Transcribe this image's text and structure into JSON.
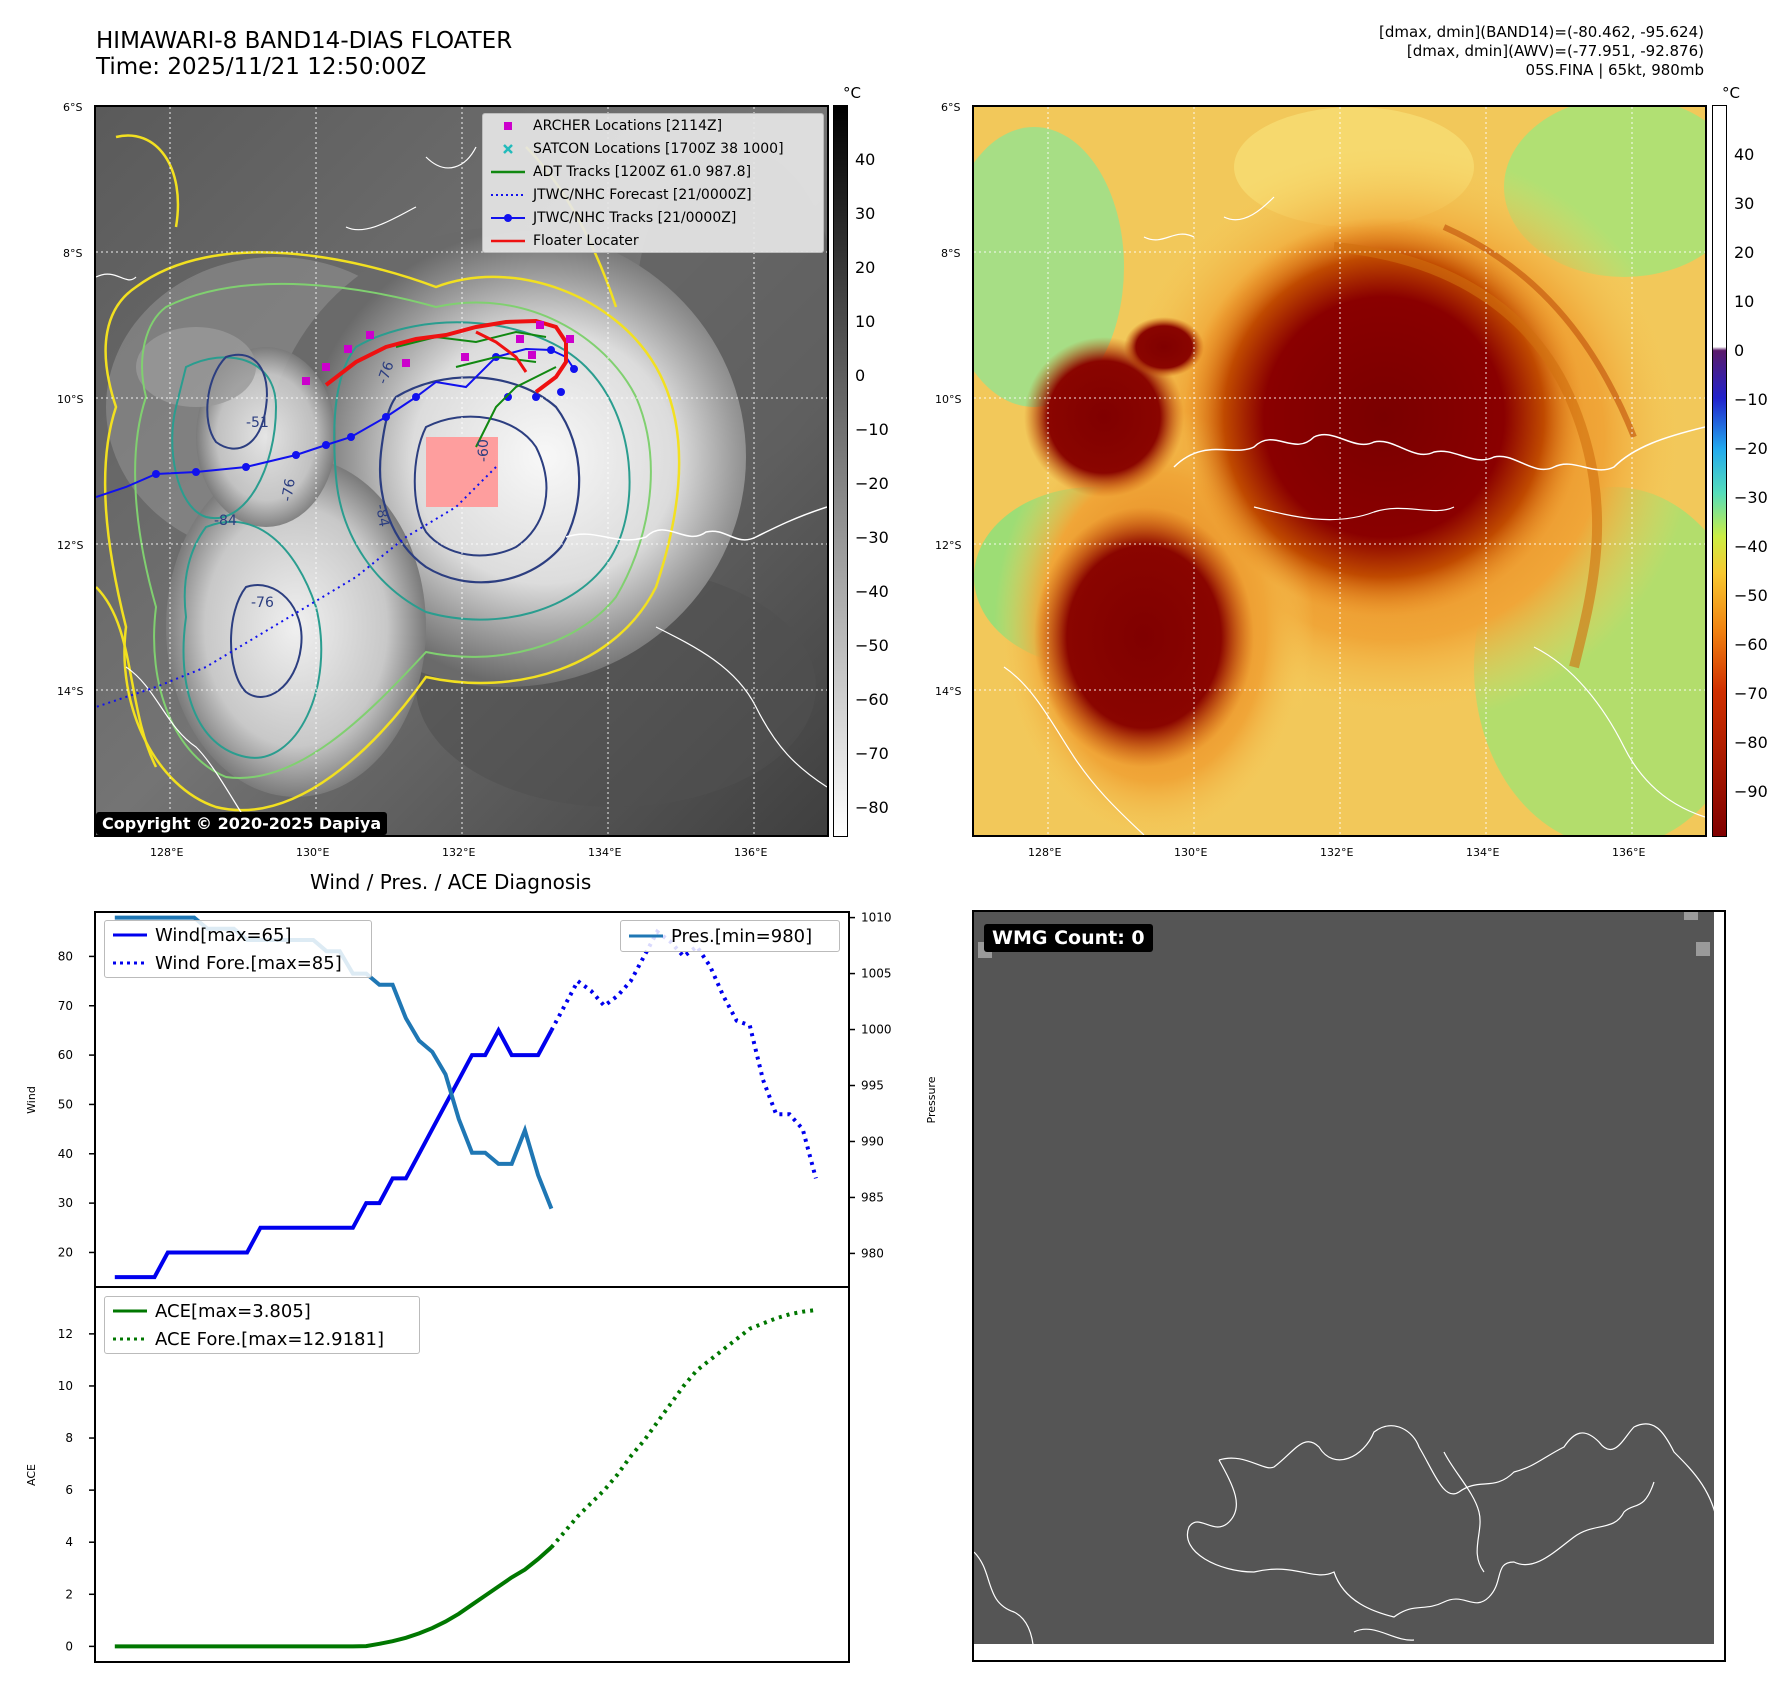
{
  "header": {
    "title_line1": "HIMAWARI-8 BAND14-DIAS FLOATER",
    "title_line2": "Time: 2025/11/21 12:50:00Z",
    "info_line1": "[dmax, dmin](BAND14)=(-80.462, -95.624)",
    "info_line2": "[dmax, dmin](AWV)=(-77.951, -92.876)",
    "info_line3": "05S.FINA | 65kt, 980mb"
  },
  "map": {
    "lat_labels": [
      "6°S",
      "8°S",
      "10°S",
      "12°S",
      "14°S"
    ],
    "lon_labels": [
      "128°E",
      "130°E",
      "132°E",
      "134°E",
      "136°E"
    ],
    "copyright": "Copyright © 2020-2025 Dapiya",
    "legend": [
      {
        "label": "ARCHER Locations [2114Z]",
        "symbol": "square",
        "color": "#cc00cc"
      },
      {
        "label": "SATCON Locations [1700Z 38 1000]",
        "symbol": "x",
        "color": "#22bbbb"
      },
      {
        "label": "ADT Tracks [1200Z 61.0 987.8]",
        "symbol": "line",
        "color": "#118811"
      },
      {
        "label": "JTWC/NHC Forecast [21/0000Z]",
        "symbol": "dotted",
        "color": "#1111ee"
      },
      {
        "label": "JTWC/NHC Tracks [21/0000Z]",
        "symbol": "line-dot",
        "color": "#1111ee"
      },
      {
        "label": "Floater Locater",
        "symbol": "line",
        "color": "#ee1111"
      }
    ],
    "contour_labels": [
      "-76",
      "-76",
      "-60",
      "-76",
      "-84",
      "-51",
      "-84"
    ]
  },
  "colorbar_left": {
    "unit": "°C",
    "ticks": [
      "40",
      "30",
      "20",
      "10",
      "0",
      "−10",
      "−20",
      "−30",
      "−40",
      "−50",
      "−60",
      "−70",
      "−80"
    ]
  },
  "colorbar_right": {
    "unit": "°C",
    "ticks": [
      "40",
      "30",
      "20",
      "10",
      "0",
      "−10",
      "−20",
      "−30",
      "−40",
      "−50",
      "−60",
      "−70",
      "−80",
      "−90"
    ]
  },
  "diagnosis": {
    "title": "Wind / Pres. / ACE Diagnosis",
    "wind_axis_label": "Wind",
    "pressure_axis_label": "Pressure",
    "ace_axis_label": "ACE",
    "wind_legend": [
      "Wind[max=65]",
      "Wind Fore.[max=85]"
    ],
    "pres_legend": "Pres.[min=980]",
    "ace_legend": [
      "ACE[max=3.805]",
      "ACE Fore.[max=12.9181]"
    ]
  },
  "wmg": {
    "label": "WMG Count: 0"
  },
  "chart_data": [
    {
      "type": "line",
      "title": "Wind / Pres. / ACE Diagnosis",
      "ylabel": "Wind",
      "ylim": [
        13,
        89
      ],
      "y_ticks": [
        20,
        30,
        40,
        50,
        60,
        70,
        80
      ],
      "series": [
        {
          "name": "Wind[max=65]",
          "style": "solid",
          "color": "#0000ee",
          "x": [
            0,
            1,
            2,
            3,
            4,
            5,
            6,
            7,
            8,
            9,
            10,
            11,
            12,
            13,
            14,
            15,
            16,
            17,
            18,
            19,
            20,
            21,
            22,
            23,
            24,
            25,
            26,
            27,
            28,
            29,
            30,
            31,
            32,
            33
          ],
          "values": [
            15,
            15,
            15,
            15,
            20,
            20,
            20,
            20,
            20,
            20,
            20,
            25,
            25,
            25,
            25,
            25,
            25,
            25,
            25,
            30,
            30,
            35,
            35,
            40,
            45,
            50,
            55,
            60,
            60,
            65,
            60,
            60,
            60,
            65
          ]
        },
        {
          "name": "Wind Fore.[max=85]",
          "style": "dotted",
          "color": "#0000ee",
          "x": [
            33,
            34,
            35,
            36,
            37,
            38,
            39,
            40,
            41,
            42,
            43,
            44,
            45,
            46,
            47,
            48,
            49,
            50,
            51,
            52,
            53
          ],
          "values": [
            65,
            70,
            75,
            73,
            70,
            72,
            75,
            80,
            85,
            83,
            80,
            82,
            78,
            72,
            67,
            66,
            55,
            48,
            48,
            45,
            35
          ]
        }
      ]
    },
    {
      "type": "line",
      "ylabel": "Pressure",
      "ylim": [
        977,
        1010.5
      ],
      "y_ticks": [
        980,
        985,
        990,
        995,
        1000,
        1005,
        1010
      ],
      "series": [
        {
          "name": "Pres.[min=980]",
          "style": "solid",
          "color": "#1f77b4",
          "x": [
            0,
            1,
            2,
            3,
            4,
            5,
            6,
            7,
            8,
            9,
            10,
            11,
            12,
            13,
            14,
            15,
            16,
            17,
            18,
            19,
            20,
            21,
            22,
            23,
            24,
            25,
            26,
            27,
            28,
            29,
            30,
            31,
            32,
            33
          ],
          "values": [
            1010,
            1010,
            1010,
            1010,
            1010,
            1010,
            1010,
            1009,
            1009,
            1009,
            1008,
            1008,
            1008,
            1008,
            1008,
            1008,
            1007,
            1007,
            1005,
            1005,
            1004,
            1004,
            1001,
            999,
            998,
            996,
            992,
            989,
            989,
            988,
            988,
            991,
            987,
            984
          ]
        }
      ]
    },
    {
      "type": "line",
      "ylabel": "ACE",
      "ylim": [
        -0.6,
        13.8
      ],
      "y_ticks": [
        0,
        2,
        4,
        6,
        8,
        10,
        12
      ],
      "series": [
        {
          "name": "ACE[max=3.805]",
          "style": "solid",
          "color": "#007700",
          "x": [
            0,
            2,
            4,
            6,
            8,
            10,
            12,
            14,
            16,
            18,
            19,
            20,
            21,
            22,
            23,
            24,
            25,
            26,
            27,
            28,
            29,
            30,
            31,
            32,
            33
          ],
          "values": [
            0,
            0,
            0,
            0,
            0,
            0,
            0,
            0,
            0,
            0,
            0.01,
            0.1,
            0.2,
            0.33,
            0.5,
            0.7,
            0.95,
            1.25,
            1.6,
            1.95,
            2.3,
            2.65,
            2.95,
            3.35,
            3.805
          ]
        },
        {
          "name": "ACE Fore.[max=12.9181]",
          "style": "dotted",
          "color": "#007700",
          "x": [
            33,
            34,
            35,
            36,
            37,
            38,
            39,
            40,
            41,
            42,
            43,
            44,
            45,
            46,
            47,
            48,
            49,
            50,
            51,
            52,
            53
          ],
          "values": [
            3.805,
            4.4,
            5.0,
            5.5,
            6.0,
            6.6,
            7.3,
            7.9,
            8.6,
            9.3,
            10.0,
            10.6,
            11.0,
            11.4,
            11.8,
            12.2,
            12.4,
            12.6,
            12.75,
            12.85,
            12.9181
          ]
        }
      ]
    }
  ]
}
